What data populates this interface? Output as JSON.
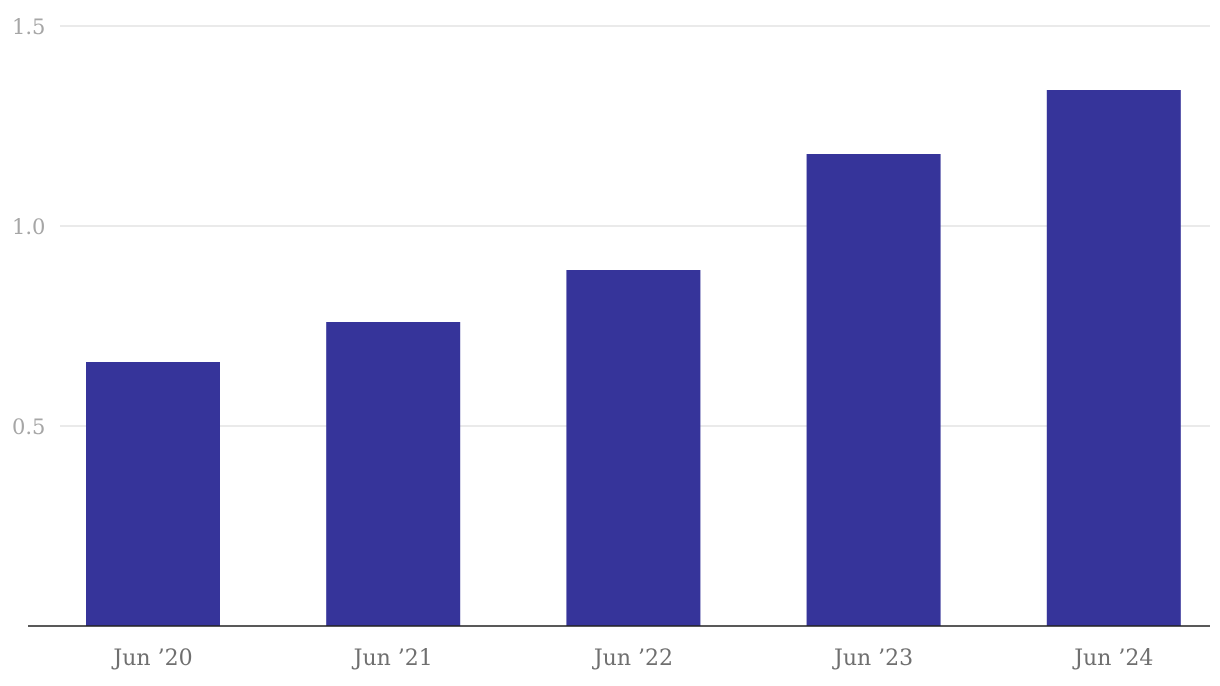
{
  "chart_data": {
    "type": "bar",
    "title": "",
    "xlabel": "",
    "ylabel": "",
    "categories": [
      "Jun ’20",
      "Jun ’21",
      "Jun ’22",
      "Jun ’23",
      "Jun ’24"
    ],
    "values": [
      0.66,
      0.76,
      0.89,
      1.18,
      1.34
    ],
    "ylim": [
      0,
      1.5
    ],
    "y_ticks": [
      0.5,
      1.0,
      1.5
    ],
    "y_tick_labels": [
      "0.5",
      "1.0",
      "1.5"
    ],
    "grid": true,
    "legend": "none",
    "colors": {
      "bar": "#36349a",
      "grid": "#e3e3e3",
      "axis": "#222222",
      "y_tick_text": "#a6a6a6",
      "x_tick_text": "#6f6f6f"
    }
  }
}
